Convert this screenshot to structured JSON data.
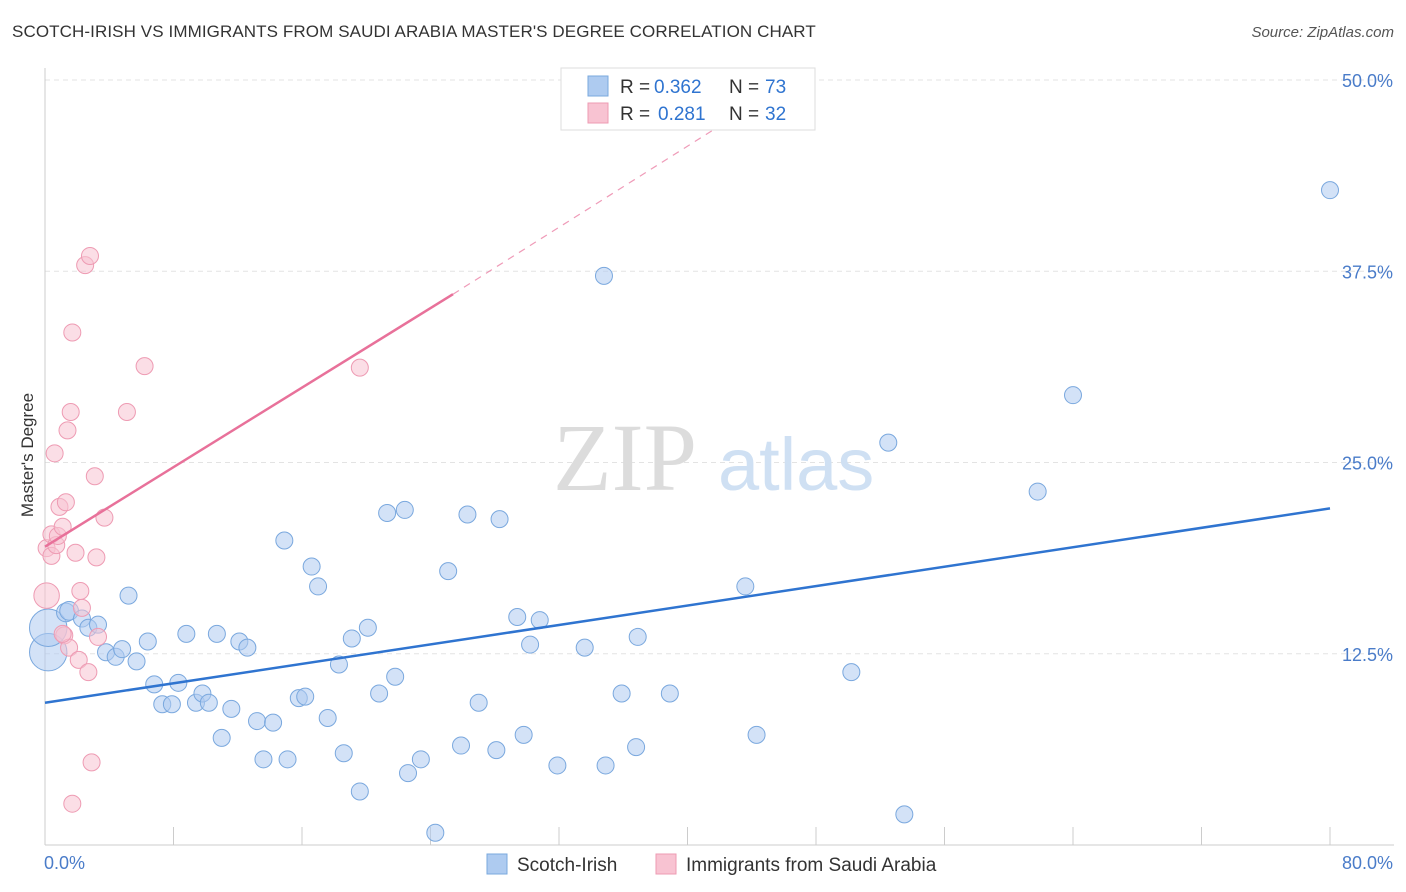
{
  "title": "SCOTCH-IRISH VS IMMIGRANTS FROM SAUDI ARABIA MASTER'S DEGREE CORRELATION CHART",
  "source": "Source: ZipAtlas.com",
  "watermark": {
    "zip": "ZIP",
    "atlas": "atlas"
  },
  "colors": {
    "blue_fill": "#aecbf0",
    "blue_stroke": "#7aa8de",
    "blue_line": "#2f74d0",
    "pink_fill": "#f8c3d2",
    "pink_stroke": "#ee9bb3",
    "pink_line": "#e8719a",
    "tick_text": "#4a7cc9",
    "grid": "#e3e3e3"
  },
  "legend": {
    "rows": [
      {
        "r_label": "R =",
        "r_value": "0.362",
        "n_label": "N =",
        "n_value": "73"
      },
      {
        "r_label": "R =",
        "r_value": "0.281",
        "n_label": "N =",
        "n_value": "32"
      }
    ]
  },
  "chart_data": {
    "type": "scatter",
    "xlabel": "",
    "ylabel": "Master's Degree",
    "xlim": [
      0,
      80
    ],
    "ylim": [
      0,
      50
    ],
    "x_tick_labels": [
      "0.0%",
      "80.0%"
    ],
    "y_ticks": [
      12.5,
      25.0,
      37.5,
      50.0
    ],
    "y_tick_labels": [
      "12.5%",
      "25.0%",
      "37.5%",
      "50.0%"
    ],
    "series": [
      {
        "name": "Scotch-Irish",
        "color": "blue",
        "r": 0.362,
        "n": 73,
        "trend": {
          "x": [
            0,
            80
          ],
          "y": [
            9.3,
            22.0
          ]
        },
        "points": [
          [
            0.2,
            12.6,
            2.2
          ],
          [
            0.2,
            14.2,
            2.2
          ],
          [
            1.3,
            15.2,
            1.1
          ],
          [
            1.5,
            15.3,
            1.1
          ],
          [
            2.3,
            14.8,
            1.0
          ],
          [
            2.7,
            14.2,
            1.0
          ],
          [
            3.3,
            14.4,
            1.0
          ],
          [
            3.8,
            12.6,
            1.0
          ],
          [
            4.4,
            12.3,
            1.0
          ],
          [
            4.8,
            12.8,
            1.0
          ],
          [
            5.2,
            16.3,
            1.0
          ],
          [
            5.7,
            12.0,
            1.0
          ],
          [
            6.4,
            13.3,
            1.0
          ],
          [
            6.8,
            10.5,
            1.0
          ],
          [
            7.3,
            9.2,
            1.0
          ],
          [
            7.9,
            9.2,
            1.0
          ],
          [
            8.3,
            10.6,
            1.0
          ],
          [
            8.8,
            13.8,
            1.0
          ],
          [
            9.4,
            9.3,
            1.0
          ],
          [
            9.8,
            9.9,
            1.0
          ],
          [
            10.2,
            9.3,
            1.0
          ],
          [
            10.7,
            13.8,
            1.0
          ],
          [
            11.0,
            7.0,
            1.0
          ],
          [
            11.6,
            8.9,
            1.0
          ],
          [
            12.1,
            13.3,
            1.0
          ],
          [
            12.6,
            12.9,
            1.0
          ],
          [
            13.2,
            8.1,
            1.0
          ],
          [
            13.6,
            5.6,
            1.0
          ],
          [
            14.2,
            8.0,
            1.0
          ],
          [
            14.9,
            19.9,
            1.0
          ],
          [
            15.1,
            5.6,
            1.0
          ],
          [
            15.8,
            9.6,
            1.0
          ],
          [
            16.2,
            9.7,
            1.0
          ],
          [
            16.6,
            18.2,
            1.0
          ],
          [
            17.0,
            16.9,
            1.0
          ],
          [
            17.6,
            8.3,
            1.0
          ],
          [
            18.3,
            11.8,
            1.0
          ],
          [
            18.6,
            6.0,
            1.0
          ],
          [
            19.1,
            13.5,
            1.0
          ],
          [
            19.6,
            3.5,
            1.0
          ],
          [
            20.1,
            14.2,
            1.0
          ],
          [
            20.8,
            9.9,
            1.0
          ],
          [
            21.3,
            21.7,
            1.0
          ],
          [
            21.8,
            11.0,
            1.0
          ],
          [
            22.4,
            21.9,
            1.0
          ],
          [
            22.6,
            4.7,
            1.0
          ],
          [
            23.4,
            5.6,
            1.0
          ],
          [
            24.3,
            0.8,
            1.0
          ],
          [
            25.1,
            17.9,
            1.0
          ],
          [
            25.9,
            6.5,
            1.0
          ],
          [
            26.3,
            21.6,
            1.0
          ],
          [
            27.0,
            9.3,
            1.0
          ],
          [
            28.1,
            6.2,
            1.0
          ],
          [
            28.3,
            21.3,
            1.0
          ],
          [
            29.4,
            14.9,
            1.0
          ],
          [
            29.8,
            7.2,
            1.0
          ],
          [
            30.2,
            13.1,
            1.0
          ],
          [
            30.8,
            14.7,
            1.0
          ],
          [
            31.9,
            5.2,
            1.0
          ],
          [
            33.6,
            12.9,
            1.0
          ],
          [
            34.8,
            37.2,
            1.0
          ],
          [
            34.9,
            5.2,
            1.0
          ],
          [
            35.9,
            9.9,
            1.0
          ],
          [
            36.8,
            6.4,
            1.0
          ],
          [
            36.9,
            13.6,
            1.0
          ],
          [
            38.9,
            9.9,
            1.0
          ],
          [
            43.6,
            16.9,
            1.0
          ],
          [
            44.3,
            7.2,
            1.0
          ],
          [
            50.2,
            11.3,
            1.0
          ],
          [
            52.5,
            26.3,
            1.0
          ],
          [
            53.5,
            2.0,
            1.0
          ],
          [
            61.8,
            23.1,
            1.0
          ],
          [
            64.0,
            29.4,
            1.0
          ],
          [
            80.0,
            42.8,
            1.0
          ]
        ]
      },
      {
        "name": "Immigrants from Saudi Arabia",
        "color": "pink",
        "r": 0.281,
        "n": 32,
        "trend": {
          "x": [
            0,
            25.4,
            42.0
          ],
          "y": [
            19.5,
            36.0,
            47.0
          ]
        },
        "points": [
          [
            0.1,
            16.3,
            1.5
          ],
          [
            0.1,
            19.4,
            1.0
          ],
          [
            0.4,
            18.9,
            1.0
          ],
          [
            0.4,
            20.3,
            1.0
          ],
          [
            0.6,
            25.6,
            1.0
          ],
          [
            0.7,
            19.6,
            1.0
          ],
          [
            0.8,
            20.2,
            1.0
          ],
          [
            0.9,
            22.1,
            1.0
          ],
          [
            1.1,
            20.8,
            1.0
          ],
          [
            1.2,
            13.7,
            1.0
          ],
          [
            1.3,
            22.4,
            1.0
          ],
          [
            1.4,
            27.1,
            1.0
          ],
          [
            1.5,
            12.9,
            1.0
          ],
          [
            1.6,
            28.3,
            1.0
          ],
          [
            1.7,
            33.5,
            1.0
          ],
          [
            1.7,
            2.7,
            1.0
          ],
          [
            1.9,
            19.1,
            1.0
          ],
          [
            2.1,
            12.1,
            1.0
          ],
          [
            2.2,
            16.6,
            1.0
          ],
          [
            2.3,
            15.5,
            1.0
          ],
          [
            2.5,
            37.9,
            1.0
          ],
          [
            2.7,
            11.3,
            1.0
          ],
          [
            2.8,
            38.5,
            1.0
          ],
          [
            2.9,
            5.4,
            1.0
          ],
          [
            3.1,
            24.1,
            1.0
          ],
          [
            3.2,
            18.8,
            1.0
          ],
          [
            3.3,
            13.6,
            1.0
          ],
          [
            3.7,
            21.4,
            1.0
          ],
          [
            5.1,
            28.3,
            1.0
          ],
          [
            6.2,
            31.3,
            1.0
          ],
          [
            19.6,
            31.2,
            1.0
          ],
          [
            1.1,
            13.8,
            1.0
          ]
        ]
      }
    ]
  },
  "bottom_legend": [
    {
      "label": "Scotch-Irish"
    },
    {
      "label": "Immigrants from Saudi Arabia"
    }
  ]
}
